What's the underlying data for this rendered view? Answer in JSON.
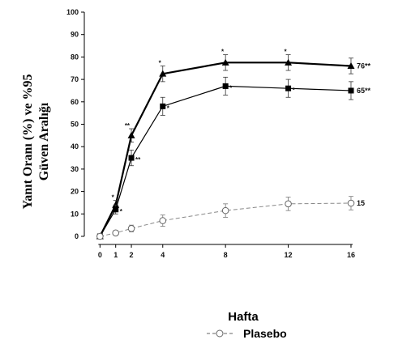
{
  "chart_data": {
    "type": "line",
    "xlabel": "Hafta",
    "ylabel_lines": [
      "Yanıt Oranı (%) ve %95",
      "Güven Aralığı"
    ],
    "x": [
      0,
      1,
      2,
      4,
      8,
      12,
      16
    ],
    "xlim": [
      -1,
      17.5
    ],
    "ylim": [
      0,
      100
    ],
    "yticks": [
      0,
      10,
      20,
      30,
      40,
      50,
      60,
      70,
      80,
      90,
      100
    ],
    "grid": false,
    "series": [
      {
        "marker": "triangle",
        "line": "solid-thick",
        "color": "#000000",
        "values": [
          0,
          14,
          45,
          72.5,
          77.5,
          77.5,
          76
        ],
        "err": [
          0,
          2,
          3,
          3.5,
          3.5,
          3.5,
          3.5
        ],
        "end_label": "76**",
        "annotations": [
          "",
          "*",
          "**",
          "*",
          "*",
          "*",
          ""
        ]
      },
      {
        "marker": "square",
        "line": "solid",
        "color": "#000000",
        "values": [
          0,
          12,
          35,
          58,
          67,
          66,
          65
        ],
        "err": [
          0,
          2,
          3.5,
          4,
          4,
          4,
          4
        ],
        "end_label": "65**",
        "annotations": [
          "",
          "*",
          "**",
          "*",
          "*",
          "*",
          ""
        ]
      },
      {
        "name": "Plasebo",
        "marker": "circle-open",
        "line": "dashed",
        "color": "#888888",
        "values": [
          0,
          1.5,
          3.5,
          7,
          11.5,
          14.5,
          14.8
        ],
        "err": [
          0,
          1,
          1.5,
          2.5,
          3,
          3,
          3
        ],
        "end_label": "15",
        "annotations": [
          "",
          "",
          "",
          "",
          "",
          "",
          ""
        ]
      }
    ],
    "legend": {
      "position": "bottom-center",
      "label": "Plasebo"
    }
  }
}
